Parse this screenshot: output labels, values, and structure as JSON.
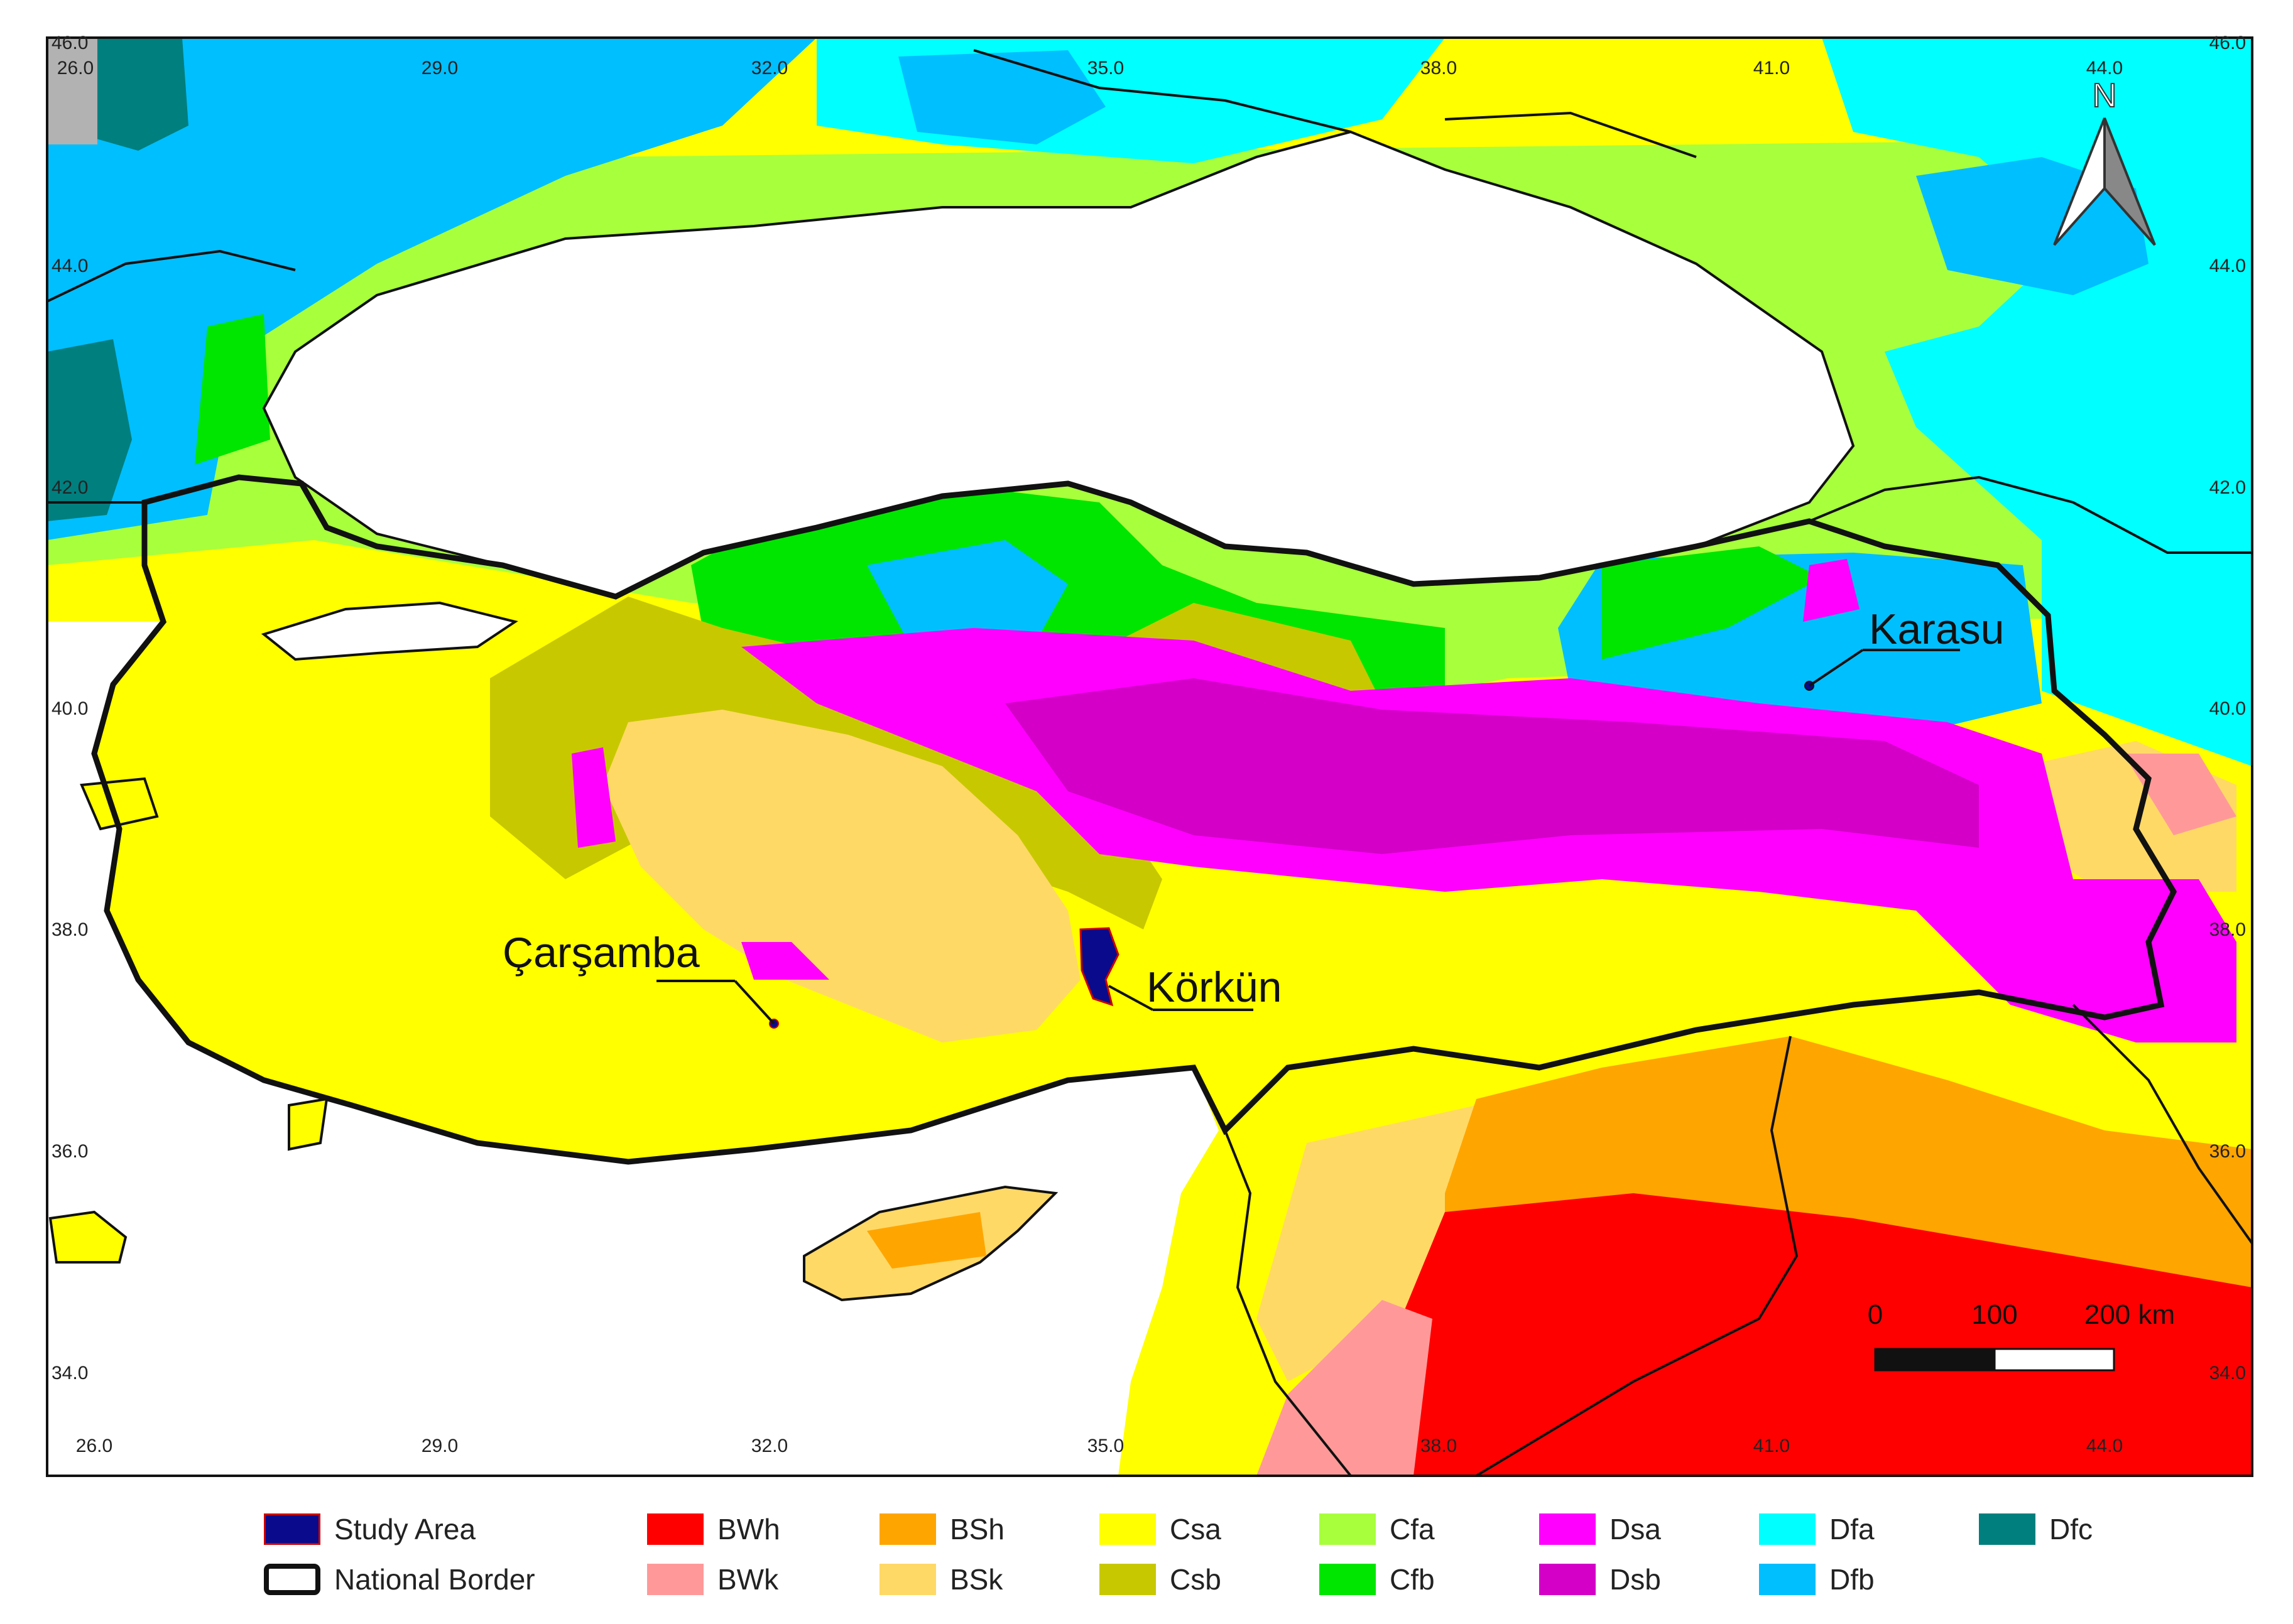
{
  "map": {
    "lon_ticks": [
      "26.0",
      "29.0",
      "32.0",
      "35.0",
      "38.0",
      "41.0",
      "44.0"
    ],
    "lat_ticks": [
      "46.0",
      "44.0",
      "42.0",
      "40.0",
      "38.0",
      "36.0",
      "34.0"
    ],
    "places": [
      {
        "name": "Karasu"
      },
      {
        "name": "Çarşamba"
      },
      {
        "name": "Körkün"
      }
    ],
    "north_label": "N",
    "scale_bar": {
      "labels": [
        "0",
        "100",
        "200 km"
      ]
    },
    "colors": {
      "water": "#ffffff",
      "border_line": "#111111",
      "study_area": "#0a0a8c",
      "BWh": "#ff0000",
      "BWk": "#ff9999",
      "BSh": "#ffa500",
      "BSk": "#ffd966",
      "Csa": "#ffff00",
      "Csb": "#c8c800",
      "Cfa": "#a8ff3c",
      "Cfb": "#00e600",
      "Dsa": "#ff00ff",
      "Dsb": "#d400c8",
      "Dfa": "#00ffff",
      "Dfb": "#00bfff",
      "Dfc": "#007f7f",
      "ET": "#b2b2b2"
    }
  },
  "legend": {
    "items": [
      {
        "code": "study",
        "label": "Study Area",
        "color": "#0a0a8c",
        "border": "#cc0000"
      },
      {
        "code": "border",
        "label": "National Border",
        "color": "#ffffff",
        "border": "#111111"
      },
      {
        "code": "BWh",
        "label": "BWh",
        "color": "#ff0000"
      },
      {
        "code": "BWk",
        "label": "BWk",
        "color": "#ff9999"
      },
      {
        "code": "BSh",
        "label": "BSh",
        "color": "#ffa500"
      },
      {
        "code": "BSk",
        "label": "BSk",
        "color": "#ffd966"
      },
      {
        "code": "Csa",
        "label": "Csa",
        "color": "#ffff00"
      },
      {
        "code": "Csb",
        "label": "Csb",
        "color": "#c8c800"
      },
      {
        "code": "Cfa",
        "label": "Cfa",
        "color": "#a8ff3c"
      },
      {
        "code": "Cfb",
        "label": "Cfb",
        "color": "#00e600"
      },
      {
        "code": "Dsa",
        "label": "Dsa",
        "color": "#ff00ff"
      },
      {
        "code": "Dsb",
        "label": "Dsb",
        "color": "#d400c8"
      },
      {
        "code": "Dfa",
        "label": "Dfa",
        "color": "#00ffff"
      },
      {
        "code": "Dfb",
        "label": "Dfb",
        "color": "#00bfff"
      },
      {
        "code": "Dfc",
        "label": "Dfc",
        "color": "#007f7f"
      }
    ]
  }
}
